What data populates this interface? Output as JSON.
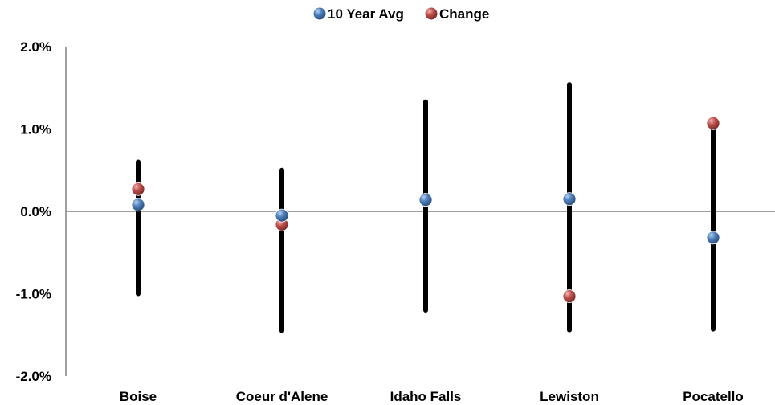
{
  "chart_data": {
    "type": "scatter",
    "title": "",
    "xlabel": "",
    "ylabel": "",
    "categories": [
      "Boise",
      "Coeur d'Alene",
      "Idaho Falls",
      "Lewiston",
      "Pocatello"
    ],
    "ylim": [
      -0.02,
      0.02
    ],
    "y_ticks": [
      {
        "value": 0.02,
        "label": "2.0%"
      },
      {
        "value": 0.01,
        "label": "1.0%"
      },
      {
        "value": 0.0,
        "label": "0.0%"
      },
      {
        "value": -0.01,
        "label": "-1.0%"
      },
      {
        "value": -0.02,
        "label": "-2.0%"
      }
    ],
    "ranges": [
      {
        "category": "Boise",
        "high": 0.006,
        "low": -0.01
      },
      {
        "category": "Coeur d'Alene",
        "high": 0.005,
        "low": -0.0145
      },
      {
        "category": "Idaho Falls",
        "high": 0.0133,
        "low": -0.012
      },
      {
        "category": "Lewiston",
        "high": 0.0154,
        "low": -0.0144
      },
      {
        "category": "Pocatello",
        "high": 0.0103,
        "low": -0.0143
      }
    ],
    "series": [
      {
        "name": "10 Year Avg",
        "color": "#4f81bd",
        "values": [
          0.0008,
          -0.0005,
          0.0014,
          0.0015,
          -0.0032
        ]
      },
      {
        "name": "Change",
        "color": "#c0504d",
        "values": [
          0.0027,
          -0.0016,
          0.0014,
          -0.0103,
          0.0107
        ]
      }
    ],
    "legend_position": "top-center",
    "grid": false,
    "zero_line_color": "#808080",
    "axis_color": "#808080",
    "range_line_color": "#000000"
  }
}
